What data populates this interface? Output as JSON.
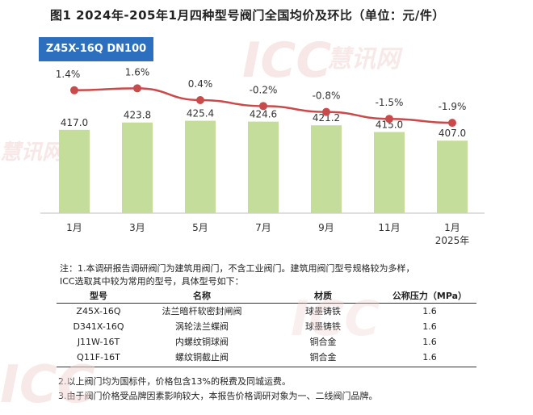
{
  "title": "图1 2024年-205年1月四种型号阀门全国均价及环比（单位：元/件）",
  "badge": "Z45X-16Q DN100",
  "watermark": {
    "logo": "ICC",
    "brand": "慧讯网",
    "color": "#e07070"
  },
  "chart_data": {
    "type": "bar+line",
    "categories": [
      "1月",
      "3月",
      "5月",
      "7月",
      "9月",
      "11月",
      "1月"
    ],
    "category_sublabels": [
      "",
      "",
      "",
      "",
      "",
      "",
      "2025年"
    ],
    "series": [
      {
        "name": "均价",
        "type": "bar",
        "color": "#c5dd9b",
        "values": [
          417.0,
          423.8,
          425.4,
          424.6,
          421.2,
          415.0,
          407.0
        ],
        "labels": [
          "417.0",
          "423.8",
          "425.4",
          "424.6",
          "421.2",
          "415.0",
          "407.0"
        ]
      },
      {
        "name": "环比",
        "type": "line",
        "color": "#c94a4a",
        "values": [
          1.4,
          1.6,
          0.4,
          -0.2,
          -0.8,
          -1.5,
          -1.9
        ],
        "labels": [
          "1.4%",
          "1.6%",
          "0.4%",
          "-0.2%",
          "-0.8%",
          "-1.5%",
          "-1.9%"
        ]
      }
    ],
    "bar_ylim": [
      340,
      440
    ],
    "line_ylim": [
      -14,
      4
    ],
    "legend": "none",
    "grid": false
  },
  "notes": {
    "note1_line1": "注：1.本调研报告调研阀门为建筑用阀门，不含工业阀门。建筑用阀门型号规格较为多样，",
    "note1_line2": "ICC选取其中较为常用的型号，具体型号如下：",
    "note2": "2.以上阀门均为国标件，价格包含13%的税费及同城运费。",
    "note3": "3.由于阀门价格受品牌因素影响较大，本报告价格调研对象为一、二线阀门品牌。"
  },
  "table": {
    "headers": [
      "型号",
      "名称",
      "材质",
      "公称压力（MPa）"
    ],
    "rows": [
      [
        "Z45X-16Q",
        "法兰暗杆软密封闸阀",
        "球墨铸铁",
        "1.6"
      ],
      [
        "D341X-16Q",
        "涡轮法兰蝶阀",
        "球墨铸铁",
        "1.6"
      ],
      [
        "J11W-16T",
        "内螺纹铜球阀",
        "铜合金",
        "1.6"
      ],
      [
        "Q11F-16T",
        "螺纹铜截止阀",
        "铜合金",
        "1.6"
      ]
    ]
  }
}
